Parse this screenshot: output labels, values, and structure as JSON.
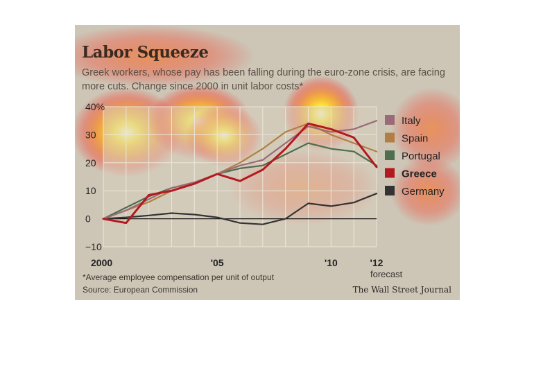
{
  "title": "Labor Squeeze",
  "subtitle": "Greek workers, whose pay has been falling during the euro-zone crisis, are facing more cuts. Change since 2000 in unit labor costs*",
  "footnote": "*Average employee compensation per unit of output",
  "source": "Source: European Commission",
  "publisher": "The Wall Street Journal",
  "chart_data": {
    "type": "line",
    "title": "Labor Squeeze",
    "x": [
      2000,
      2001,
      2002,
      2003,
      2004,
      2005,
      2006,
      2007,
      2008,
      2009,
      2010,
      2011,
      2012
    ],
    "x_tick_labels": [
      {
        "x": 2000,
        "label": "2000"
      },
      {
        "x": 2005,
        "label": "'05"
      },
      {
        "x": 2010,
        "label": "'10"
      },
      {
        "x": 2012,
        "label": "'12"
      }
    ],
    "forecast_label": "forecast",
    "y_tick_labels": [
      "40%",
      "30",
      "20",
      "10",
      "0",
      "−10"
    ],
    "y_ticks": [
      40,
      30,
      20,
      10,
      0,
      -10
    ],
    "ylim": [
      -10,
      40
    ],
    "grid": true,
    "legend_position": "right",
    "series": [
      {
        "name": "Italy",
        "color": "#9a6a78",
        "values": [
          0,
          3,
          7,
          11,
          13,
          16,
          19,
          21,
          27,
          33,
          31,
          32,
          35
        ]
      },
      {
        "name": "Spain",
        "color": "#b27e44",
        "values": [
          0,
          3,
          6,
          10,
          13,
          16,
          20,
          25,
          31,
          34,
          30,
          27,
          24
        ]
      },
      {
        "name": "Portugal",
        "color": "#4e6e50",
        "values": [
          0,
          4,
          8,
          11,
          13,
          16,
          18,
          19,
          23,
          27,
          25,
          24,
          19
        ]
      },
      {
        "name": "Greece",
        "color": "#b3191e",
        "values": [
          0,
          -1.5,
          8.5,
          10,
          12.5,
          16,
          13.5,
          17.5,
          25,
          34,
          32,
          29,
          18.5
        ]
      },
      {
        "name": "Germany",
        "color": "#333333",
        "values": [
          0,
          0.5,
          1.2,
          2,
          1.5,
          0.5,
          -1.5,
          -2,
          0,
          5.5,
          4.5,
          5.8,
          9
        ]
      }
    ]
  }
}
